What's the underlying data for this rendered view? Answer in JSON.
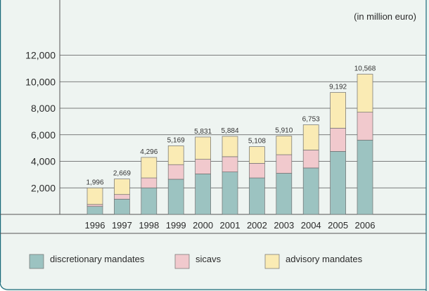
{
  "chart_data": {
    "type": "bar",
    "stacked": true,
    "unit_note": "(in million euro)",
    "categories": [
      "1996",
      "1997",
      "1998",
      "1999",
      "2000",
      "2001",
      "2002",
      "2003",
      "2004",
      "2005",
      "2006"
    ],
    "series": [
      {
        "name": "discretionary mandates",
        "color": "#9cc3c1",
        "values": [
          600,
          1150,
          2000,
          2650,
          3050,
          3200,
          2750,
          3100,
          3500,
          4750,
          5600
        ]
      },
      {
        "name": "sicavs",
        "color": "#f1c9cd",
        "values": [
          150,
          350,
          750,
          1100,
          1100,
          1150,
          1100,
          1400,
          1350,
          1750,
          2100
        ]
      },
      {
        "name": "advisory mandates",
        "color": "#faebb4",
        "values": [
          1246,
          1169,
          1546,
          1419,
          1681,
          1534,
          1258,
          1410,
          1903,
          2692,
          2868
        ]
      }
    ],
    "totals": [
      "1,996",
      "2,669",
      "4,296",
      "5,169",
      "5,831",
      "5,884",
      "5,108",
      "5,910",
      "6,753",
      "9,192",
      "10,568"
    ],
    "y_ticks": [
      "2,000",
      "4,000",
      "6,000",
      "8,000",
      "10,000",
      "12,000"
    ],
    "y_tick_values": [
      2000,
      4000,
      6000,
      8000,
      10000,
      12000
    ],
    "ylim": [
      0,
      12000
    ],
    "grid": true,
    "legend_position": "bottom",
    "frame_color": "#1a6a7a",
    "panel_color": "#eef4f1",
    "grid_color": "#555555"
  }
}
